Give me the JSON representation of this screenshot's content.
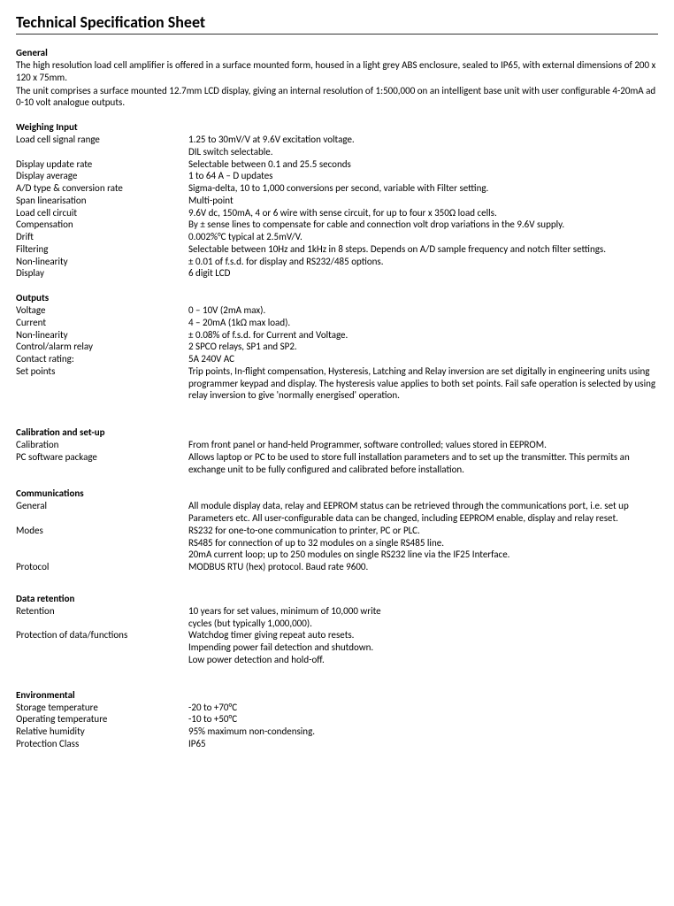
{
  "title": "Technical Specification Sheet",
  "general": {
    "heading": "General",
    "p1": "The high resolution load cell amplifier is offered in a surface mounted form, housed in a light grey ABS enclosure, sealed to IP65, with external dimensions of 200 x 120 x 75mm.",
    "p2": "The unit comprises a surface mounted 12.7mm LCD display, giving an internal resolution of 1:500,000 on an intelligent base unit with user configurable 4-20mA ad 0-10 volt analogue outputs."
  },
  "weighing": {
    "heading": "Weighing Input",
    "rows": [
      {
        "label": "Load cell signal range",
        "value": "1.25 to 30mV/V at 9.6V excitation voltage."
      },
      {
        "label": "",
        "value": "DIL switch selectable."
      },
      {
        "label": "Display update rate",
        "value": "Selectable between 0.1 and 25.5 seconds"
      },
      {
        "label": "Display average",
        "value": "1 to 64 A – D updates"
      },
      {
        "label": "A/D type & conversion rate",
        "value": "Sigma-delta, 10 to 1,000 conversions per second, variable with Filter setting."
      },
      {
        "label": "Span linearisation",
        "value": "Multi-point"
      },
      {
        "label": "Load cell circuit",
        "value": "9.6V dc, 150mA, 4 or 6 wire with sense circuit, for up to four x 350Ω load cells."
      },
      {
        "label": "Compensation",
        "value": "By ± sense lines to compensate for cable and connection volt drop variations in the 9.6V supply."
      },
      {
        "label": "Drift",
        "value": "0.002%°C typical at 2.5mV/V."
      },
      {
        "label": "Filtering",
        "value": "Selectable between 10Hz and 1kHz in 8 steps.  Depends on A/D sample frequency and notch filter settings."
      },
      {
        "label": "Non-linearity",
        "value": "± 0.01 of f.s.d. for display and RS232/485 options."
      },
      {
        "label": "Display",
        "value": "6 digit LCD"
      }
    ]
  },
  "outputs": {
    "heading": "Outputs",
    "rows": [
      {
        "label": "Voltage",
        "value": "0 – 10V (2mA max)."
      },
      {
        "label": "Current",
        "value": "4 – 20mA (1kΩ max load)."
      },
      {
        "label": "Non-linearity",
        "value": "± 0.08% of f.s.d. for Current and Voltage."
      },
      {
        "label": "Control/alarm relay",
        "value": "2 SPCO relays, SP1 and SP2."
      },
      {
        "label": "Contact rating:",
        "value": "5A 240V AC"
      },
      {
        "label": "Set points",
        "value": "Trip points, In-flight compensation, Hysteresis, Latching and Relay inversion are set digitally in engineering units using programmer keypad and display.  The hysteresis value applies to both set points.  Fail safe operation is selected by using relay inversion to give 'normally energised' operation."
      }
    ]
  },
  "calibration": {
    "heading": "Calibration and set-up",
    "rows": [
      {
        "label": "Calibration",
        "value": "From front panel or hand-held Programmer, software controlled; values stored in EEPROM."
      },
      {
        "label": "PC software package",
        "value": "Allows laptop or PC to be used to store full installation parameters and to set up the transmitter.  This permits an exchange unit to be fully configured and calibrated before installation."
      }
    ]
  },
  "communications": {
    "heading": "Communications",
    "rows": [
      {
        "label": "General",
        "value": "All module display data, relay and EEPROM status can be retrieved through the communications port, i.e. set up Parameters etc.  All user-configurable data can be changed, including EEPROM enable, display and relay reset."
      },
      {
        "label": "Modes",
        "value": "RS232 for one-to-one communication to printer, PC or PLC."
      },
      {
        "label": "",
        "value": "RS485 for connection of up to 32 modules on a single RS485 line."
      },
      {
        "label": "",
        "value": "20mA current loop; up to 250 modules on single RS232 line via the IF25 Interface."
      },
      {
        "label": "Protocol",
        "value": "MODBUS RTU (hex) protocol.  Baud rate 9600."
      }
    ]
  },
  "retention": {
    "heading": "Data retention",
    "rows": [
      {
        "label": "Retention",
        "value": "10 years for set values, minimum of 10,000 write cycles (but typically 1,000,000)."
      },
      {
        "label": "Protection of data/functions",
        "value": "Watchdog timer giving repeat auto resets.  Impending power fail detection and shutdown."
      },
      {
        "label": "",
        "value": "Low power detection and hold-off."
      }
    ]
  },
  "environmental": {
    "heading": "Environmental",
    "rows": [
      {
        "label": "Storage temperature",
        "value": "-20 to +70°C"
      },
      {
        "label": "Operating temperature",
        "value": "-10 to +50°C"
      },
      {
        "label": "Relative humidity",
        "value": "95% maximum non-condensing."
      },
      {
        "label": "Protection Class",
        "value": "IP65"
      }
    ]
  }
}
